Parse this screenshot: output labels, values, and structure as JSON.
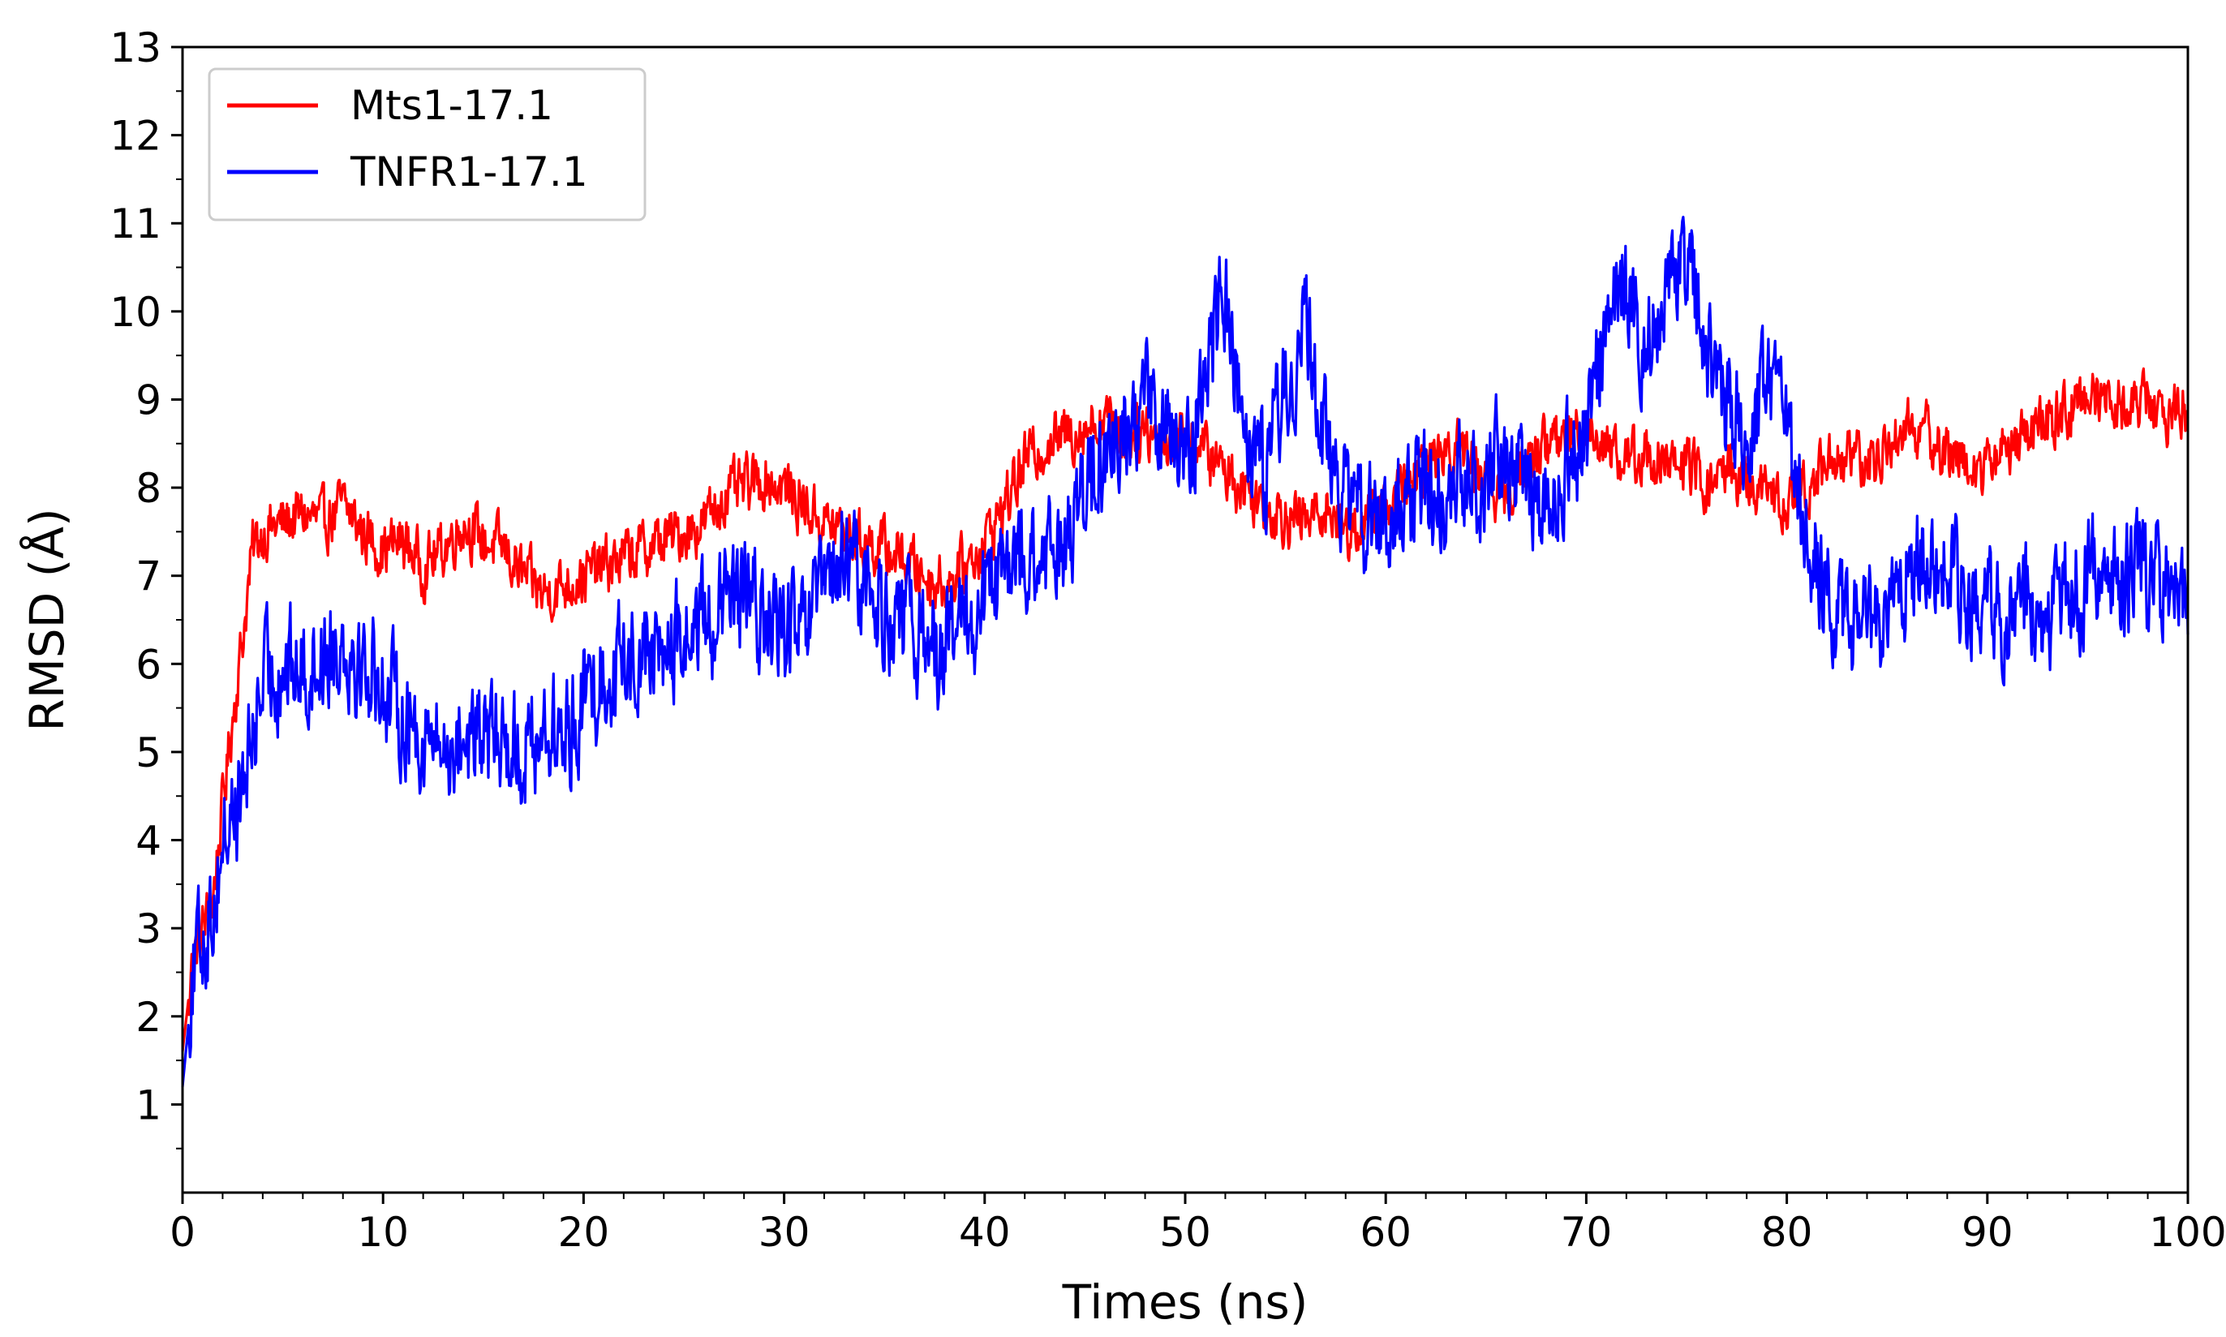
{
  "chart_data": {
    "type": "line",
    "title": "",
    "xlabel": "Times (ns)",
    "ylabel": "RMSD (Å)",
    "xlim": [
      0,
      100
    ],
    "ylim": [
      0,
      13
    ],
    "xticks": [
      0,
      10,
      20,
      30,
      40,
      50,
      60,
      70,
      80,
      90,
      100
    ],
    "yticks": [
      1,
      2,
      3,
      4,
      5,
      6,
      7,
      8,
      9,
      10,
      11,
      12,
      13
    ],
    "grid": false,
    "legend_position": "top-left",
    "series": [
      {
        "name": "Mts1-17.1",
        "color": "#ff0000",
        "x": [
          0,
          0.5,
          1,
          1.5,
          2,
          2.5,
          3,
          3.5,
          4,
          5,
          6,
          7,
          8,
          9,
          10,
          11,
          12,
          13,
          14,
          15,
          16,
          17,
          18,
          19,
          20,
          21,
          22,
          23,
          24,
          25,
          26,
          27,
          28,
          29,
          30,
          31,
          32,
          33,
          34,
          35,
          36,
          37,
          38,
          39,
          40,
          41,
          42,
          43,
          44,
          45,
          46,
          47,
          48,
          49,
          50,
          51,
          52,
          53,
          54,
          55,
          56,
          57,
          58,
          59,
          60,
          61,
          62,
          63,
          64,
          65,
          66,
          67,
          68,
          69,
          70,
          71,
          72,
          73,
          74,
          75,
          76,
          77,
          78,
          79,
          80,
          81,
          82,
          83,
          84,
          85,
          86,
          87,
          88,
          89,
          90,
          91,
          92,
          93,
          94,
          95,
          96,
          97,
          98,
          99,
          100
        ],
        "y": [
          1.6,
          2.6,
          3.0,
          3.3,
          4.4,
          5.4,
          6.3,
          7.3,
          7.5,
          7.6,
          7.7,
          7.6,
          7.8,
          7.5,
          7.3,
          7.4,
          7.1,
          7.3,
          7.6,
          7.4,
          7.3,
          7.0,
          6.8,
          6.9,
          7.0,
          7.1,
          7.2,
          7.3,
          7.4,
          7.5,
          7.6,
          7.9,
          8.0,
          8.1,
          8.0,
          7.8,
          7.6,
          7.5,
          7.4,
          7.3,
          7.2,
          7.0,
          6.9,
          7.1,
          7.4,
          7.8,
          8.3,
          8.5,
          8.6,
          8.7,
          8.8,
          8.6,
          8.7,
          8.5,
          8.6,
          8.4,
          8.2,
          8.0,
          7.8,
          7.7,
          7.6,
          7.8,
          7.5,
          7.6,
          7.8,
          8.0,
          8.2,
          8.5,
          8.4,
          8.1,
          7.9,
          8.3,
          8.5,
          8.6,
          8.7,
          8.5,
          8.3,
          8.4,
          8.2,
          8.3,
          8.0,
          8.2,
          8.1,
          7.9,
          7.8,
          8.0,
          8.3,
          8.4,
          8.2,
          8.5,
          8.7,
          8.6,
          8.4,
          8.3,
          8.2,
          8.5,
          8.6,
          8.7,
          8.9,
          9.0,
          9.1,
          8.9,
          9.0,
          8.8,
          8.9
        ]
      },
      {
        "name": "TNFR1-17.1",
        "color": "#0000ff",
        "x": [
          0,
          0.5,
          1,
          1.5,
          2,
          2.5,
          3,
          3.5,
          4,
          5,
          6,
          7,
          8,
          9,
          10,
          11,
          12,
          13,
          14,
          15,
          16,
          17,
          18,
          19,
          20,
          21,
          22,
          23,
          24,
          25,
          26,
          27,
          28,
          29,
          30,
          31,
          32,
          33,
          34,
          35,
          36,
          37,
          38,
          39,
          40,
          41,
          42,
          43,
          44,
          45,
          46,
          47,
          48,
          49,
          50,
          51,
          52,
          53,
          54,
          55,
          56,
          57,
          58,
          59,
          60,
          61,
          62,
          63,
          64,
          65,
          66,
          67,
          68,
          69,
          70,
          71,
          72,
          73,
          74,
          75,
          76,
          77,
          78,
          79,
          80,
          81,
          82,
          83,
          84,
          85,
          86,
          87,
          88,
          89,
          90,
          91,
          92,
          93,
          94,
          95,
          96,
          97,
          98,
          99,
          100
        ],
        "y": [
          1.2,
          2.4,
          2.9,
          3.2,
          4.0,
          4.3,
          4.5,
          5.2,
          5.8,
          6.0,
          5.9,
          6.1,
          6.3,
          6.0,
          5.8,
          5.4,
          5.2,
          5.0,
          5.2,
          5.1,
          5.2,
          5.0,
          5.3,
          5.1,
          5.6,
          5.9,
          6.0,
          6.2,
          6.1,
          6.3,
          6.5,
          6.6,
          6.8,
          6.5,
          6.4,
          6.3,
          6.8,
          7.2,
          6.9,
          6.6,
          6.4,
          6.3,
          6.2,
          6.4,
          6.7,
          7.0,
          7.2,
          7.0,
          7.5,
          7.9,
          8.3,
          8.6,
          9.1,
          8.6,
          8.2,
          9.4,
          10.2,
          8.8,
          8.2,
          9.2,
          9.8,
          8.5,
          7.9,
          7.6,
          7.5,
          7.8,
          8.1,
          7.9,
          8.3,
          8.0,
          8.5,
          8.1,
          7.8,
          8.2,
          8.6,
          9.9,
          10.3,
          9.6,
          10.2,
          10.6,
          9.6,
          8.9,
          8.7,
          9.1,
          8.6,
          7.6,
          6.8,
          6.5,
          6.4,
          6.7,
          7.0,
          7.4,
          7.1,
          6.8,
          6.6,
          6.5,
          6.7,
          6.6,
          6.8,
          7.0,
          7.1,
          6.9,
          7.0,
          6.8,
          6.6
        ]
      }
    ]
  }
}
